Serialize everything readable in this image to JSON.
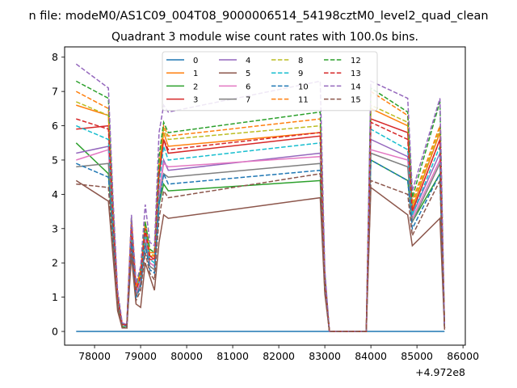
{
  "suptitle": "n file: modeM0/AS1C09_004T08_9000006514_54198cztM0_level2_quad_clean",
  "chart_data": {
    "type": "line",
    "title": "Quadrant 3 module wise count rates with 100.0s bins.",
    "xlabel": "",
    "ylabel": "",
    "x_offset_text": "+4.972e8",
    "xlim": [
      77350,
      86050
    ],
    "ylim": [
      -0.4,
      8.3
    ],
    "xticks": [
      78000,
      79000,
      80000,
      81000,
      82000,
      83000,
      84000,
      85000,
      86000
    ],
    "yticks": [
      0,
      1,
      2,
      3,
      4,
      5,
      6,
      7,
      8
    ],
    "grid": false,
    "legend": {
      "placement": "top-center",
      "columns": 4
    },
    "x": [
      77600,
      78300,
      78400,
      78500,
      78600,
      78700,
      78800,
      78900,
      79000,
      79100,
      79200,
      79300,
      79400,
      79500,
      79600,
      82900,
      83000,
      83100,
      83200,
      83900,
      84000,
      84800,
      84900,
      85500,
      85600
    ],
    "series": [
      {
        "name": "0",
        "color": "#1f77b4",
        "dashed": false,
        "values": [
          0,
          0,
          0,
          0,
          0,
          0,
          0,
          0,
          0,
          0,
          0,
          0,
          0,
          0,
          0,
          0,
          0,
          0,
          0,
          0,
          0,
          0,
          0,
          0,
          0
        ]
      },
      {
        "name": "1",
        "color": "#ff7f0e",
        "dashed": false,
        "values": [
          6.6,
          6.3,
          3.5,
          1.0,
          0.2,
          0.2,
          3.2,
          1.3,
          1.7,
          3.0,
          2.2,
          2.2,
          4.7,
          5.8,
          5.4,
          5.8,
          1.5,
          0,
          0,
          0,
          6.5,
          6.0,
          3.6,
          5.8,
          0.1
        ]
      },
      {
        "name": "2",
        "color": "#2ca02c",
        "dashed": false,
        "values": [
          5.5,
          4.6,
          2.7,
          0.7,
          0.15,
          0.1,
          2.8,
          1.0,
          1.4,
          2.6,
          2.0,
          1.9,
          3.7,
          4.3,
          4.1,
          4.4,
          1.2,
          0,
          0,
          0,
          5.0,
          4.4,
          3.2,
          4.6,
          0.1
        ]
      },
      {
        "name": "3",
        "color": "#d62728",
        "dashed": false,
        "values": [
          5.9,
          6.0,
          3.4,
          1.0,
          0.2,
          0.2,
          3.1,
          1.3,
          1.6,
          2.9,
          2.2,
          2.1,
          4.5,
          5.6,
          5.2,
          5.7,
          1.5,
          0,
          0,
          0,
          6.2,
          5.8,
          3.5,
          5.6,
          0.1
        ]
      },
      {
        "name": "4",
        "color": "#9467bd",
        "dashed": false,
        "values": [
          5.2,
          5.4,
          3.0,
          0.9,
          0.2,
          0.2,
          2.9,
          1.1,
          1.5,
          2.8,
          2.0,
          1.9,
          4.0,
          5.0,
          4.7,
          5.2,
          1.4,
          0,
          0,
          0,
          5.6,
          5.1,
          3.4,
          5.2,
          0.1
        ]
      },
      {
        "name": "5",
        "color": "#8c564b",
        "dashed": false,
        "values": [
          4.4,
          3.8,
          2.2,
          0.6,
          0.1,
          0.1,
          2.2,
          0.8,
          0.7,
          2.0,
          1.6,
          1.2,
          2.6,
          3.4,
          3.3,
          3.9,
          1.1,
          0,
          0,
          0,
          4.2,
          3.4,
          2.5,
          3.3,
          0.05
        ]
      },
      {
        "name": "6",
        "color": "#e377c2",
        "dashed": false,
        "values": [
          5.0,
          5.3,
          3.0,
          0.9,
          0.2,
          0.2,
          2.9,
          1.1,
          1.5,
          2.7,
          2.0,
          1.9,
          4.0,
          4.9,
          4.8,
          5.1,
          1.4,
          0,
          0,
          0,
          5.3,
          5.0,
          3.3,
          5.0,
          0.1
        ]
      },
      {
        "name": "7",
        "color": "#7f7f7f",
        "dashed": false,
        "values": [
          4.8,
          4.9,
          2.9,
          0.9,
          0.2,
          0.2,
          2.8,
          1.0,
          1.4,
          2.6,
          1.9,
          1.8,
          3.8,
          4.6,
          4.5,
          4.9,
          1.3,
          0,
          0,
          0,
          5.2,
          4.8,
          3.2,
          4.9,
          0.1
        ]
      },
      {
        "name": "8",
        "color": "#bcbd22",
        "dashed": true,
        "values": [
          6.7,
          6.3,
          3.5,
          1.0,
          0.2,
          0.2,
          3.2,
          1.3,
          1.7,
          3.1,
          2.3,
          2.2,
          4.8,
          5.9,
          5.6,
          6.0,
          1.6,
          0,
          0,
          0,
          6.6,
          6.1,
          3.7,
          5.9,
          0.1
        ]
      },
      {
        "name": "9",
        "color": "#17becf",
        "dashed": true,
        "values": [
          6.0,
          5.6,
          3.2,
          0.9,
          0.2,
          0.2,
          3.0,
          1.2,
          1.6,
          2.9,
          2.1,
          2.0,
          4.3,
          5.4,
          5.0,
          5.5,
          1.4,
          0,
          0,
          0,
          5.9,
          5.3,
          3.4,
          5.4,
          0.1
        ]
      },
      {
        "name": "10",
        "color": "#1f77b4",
        "dashed": true,
        "values": [
          4.9,
          4.5,
          2.7,
          0.8,
          0.2,
          0.15,
          2.6,
          1.0,
          1.3,
          2.5,
          1.8,
          1.7,
          3.7,
          4.6,
          4.3,
          4.7,
          1.3,
          0,
          0,
          0,
          5.0,
          4.4,
          3.0,
          4.6,
          0.1
        ]
      },
      {
        "name": "11",
        "color": "#ff7f0e",
        "dashed": true,
        "values": [
          7.0,
          6.5,
          3.6,
          1.0,
          0.2,
          0.2,
          3.3,
          1.3,
          1.8,
          3.2,
          2.3,
          2.3,
          5.0,
          6.0,
          5.7,
          6.2,
          1.6,
          0,
          0,
          0,
          7.0,
          6.3,
          3.8,
          6.0,
          0.1
        ]
      },
      {
        "name": "12",
        "color": "#2ca02c",
        "dashed": true,
        "values": [
          7.3,
          6.8,
          3.7,
          1.1,
          0.2,
          0.2,
          3.3,
          1.4,
          1.8,
          3.2,
          2.4,
          2.3,
          5.1,
          6.1,
          5.8,
          6.4,
          1.7,
          0,
          0,
          0,
          7.1,
          6.4,
          3.9,
          6.7,
          0.1
        ]
      },
      {
        "name": "13",
        "color": "#d62728",
        "dashed": true,
        "values": [
          6.2,
          5.9,
          3.3,
          1.0,
          0.2,
          0.2,
          3.1,
          1.2,
          1.6,
          3.0,
          2.1,
          2.1,
          4.6,
          5.6,
          5.3,
          5.8,
          1.5,
          0,
          0,
          0,
          6.1,
          5.6,
          3.5,
          5.6,
          0.1
        ]
      },
      {
        "name": "14",
        "color": "#9467bd",
        "dashed": true,
        "values": [
          7.8,
          7.1,
          3.9,
          1.2,
          0.25,
          0.2,
          3.4,
          1.4,
          1.9,
          3.7,
          2.6,
          2.5,
          5.8,
          6.6,
          6.4,
          7.3,
          1.8,
          0,
          0,
          0,
          7.3,
          6.8,
          4.1,
          6.8,
          0.1
        ]
      },
      {
        "name": "15",
        "color": "#8c564b",
        "dashed": true,
        "values": [
          4.3,
          4.2,
          2.4,
          0.7,
          0.1,
          0.1,
          2.4,
          0.9,
          1.2,
          2.3,
          1.7,
          1.5,
          3.3,
          4.1,
          3.9,
          4.6,
          1.2,
          0,
          0,
          0,
          4.4,
          4.0,
          2.8,
          4.4,
          0.1
        ]
      }
    ]
  }
}
